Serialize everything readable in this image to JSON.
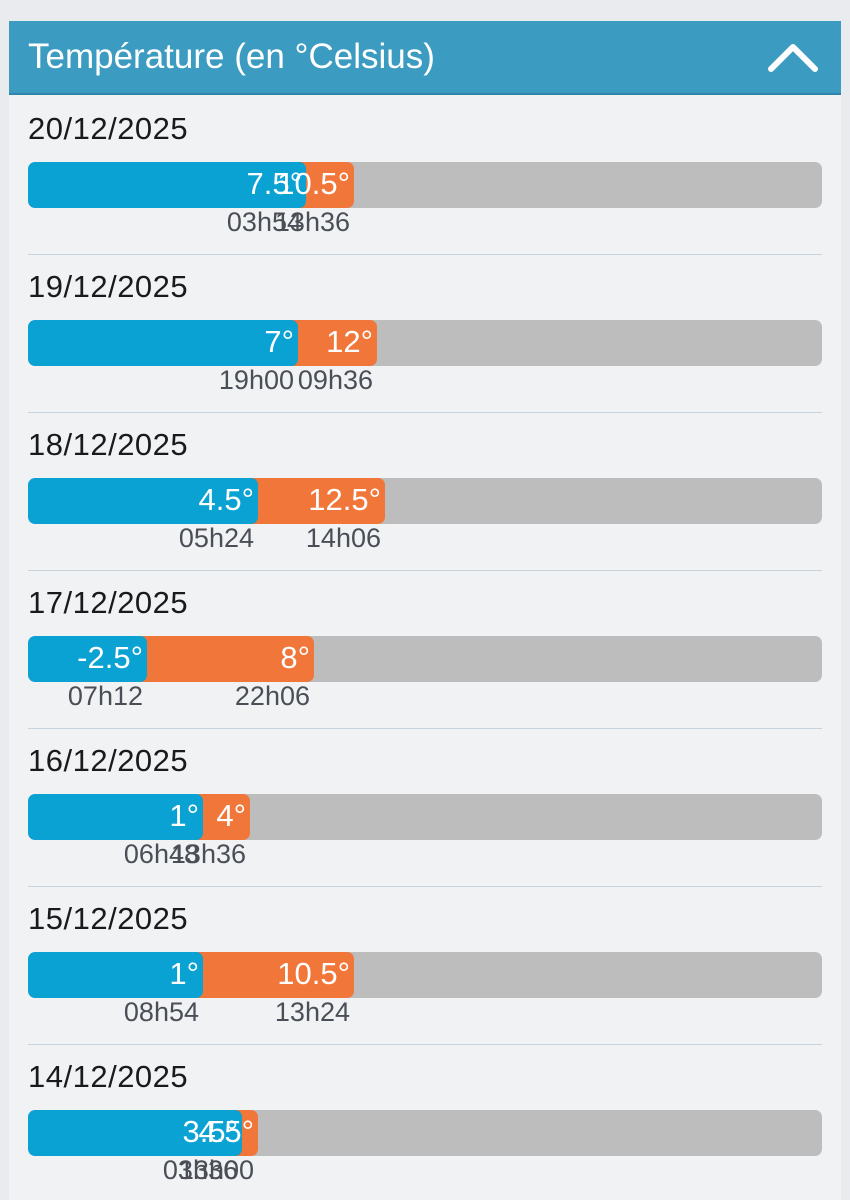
{
  "panel": {
    "title": "Température (en °Celsius)",
    "collapse_icon": "chevron-up-icon"
  },
  "colors": {
    "header": "#3b9bc0",
    "min_bar": "#0aa1d3",
    "max_bar": "#f1763a",
    "track": "#bdbdbd"
  },
  "scale": {
    "min": -10,
    "max": 40
  },
  "days": [
    {
      "date": "20/12/2025",
      "min_value": 7.5,
      "max_value": 10.5,
      "min_label": "7.5°",
      "max_label": "10.5°",
      "min_time": "03h54",
      "max_time": "13h36"
    },
    {
      "date": "19/12/2025",
      "min_value": 7,
      "max_value": 12,
      "min_label": "7°",
      "max_label": "12°",
      "min_time": "19h00",
      "max_time": "09h36"
    },
    {
      "date": "18/12/2025",
      "min_value": 4.5,
      "max_value": 12.5,
      "min_label": "4.5°",
      "max_label": "12.5°",
      "min_time": "05h24",
      "max_time": "14h06"
    },
    {
      "date": "17/12/2025",
      "min_value": -2.5,
      "max_value": 8,
      "min_label": "-2.5°",
      "max_label": "8°",
      "min_time": "07h12",
      "max_time": "22h06"
    },
    {
      "date": "16/12/2025",
      "min_value": 1,
      "max_value": 4,
      "min_label": "1°",
      "max_label": "4°",
      "min_time": "06h48",
      "max_time": "13h36"
    },
    {
      "date": "15/12/2025",
      "min_value": 1,
      "max_value": 10.5,
      "min_label": "1°",
      "max_label": "10.5°",
      "min_time": "08h54",
      "max_time": "13h24"
    },
    {
      "date": "14/12/2025",
      "min_value": 3.5,
      "max_value": 4.5,
      "min_label": "3.5°",
      "max_label": "4.5°",
      "min_time": "03h36",
      "max_time": "13h00"
    }
  ]
}
